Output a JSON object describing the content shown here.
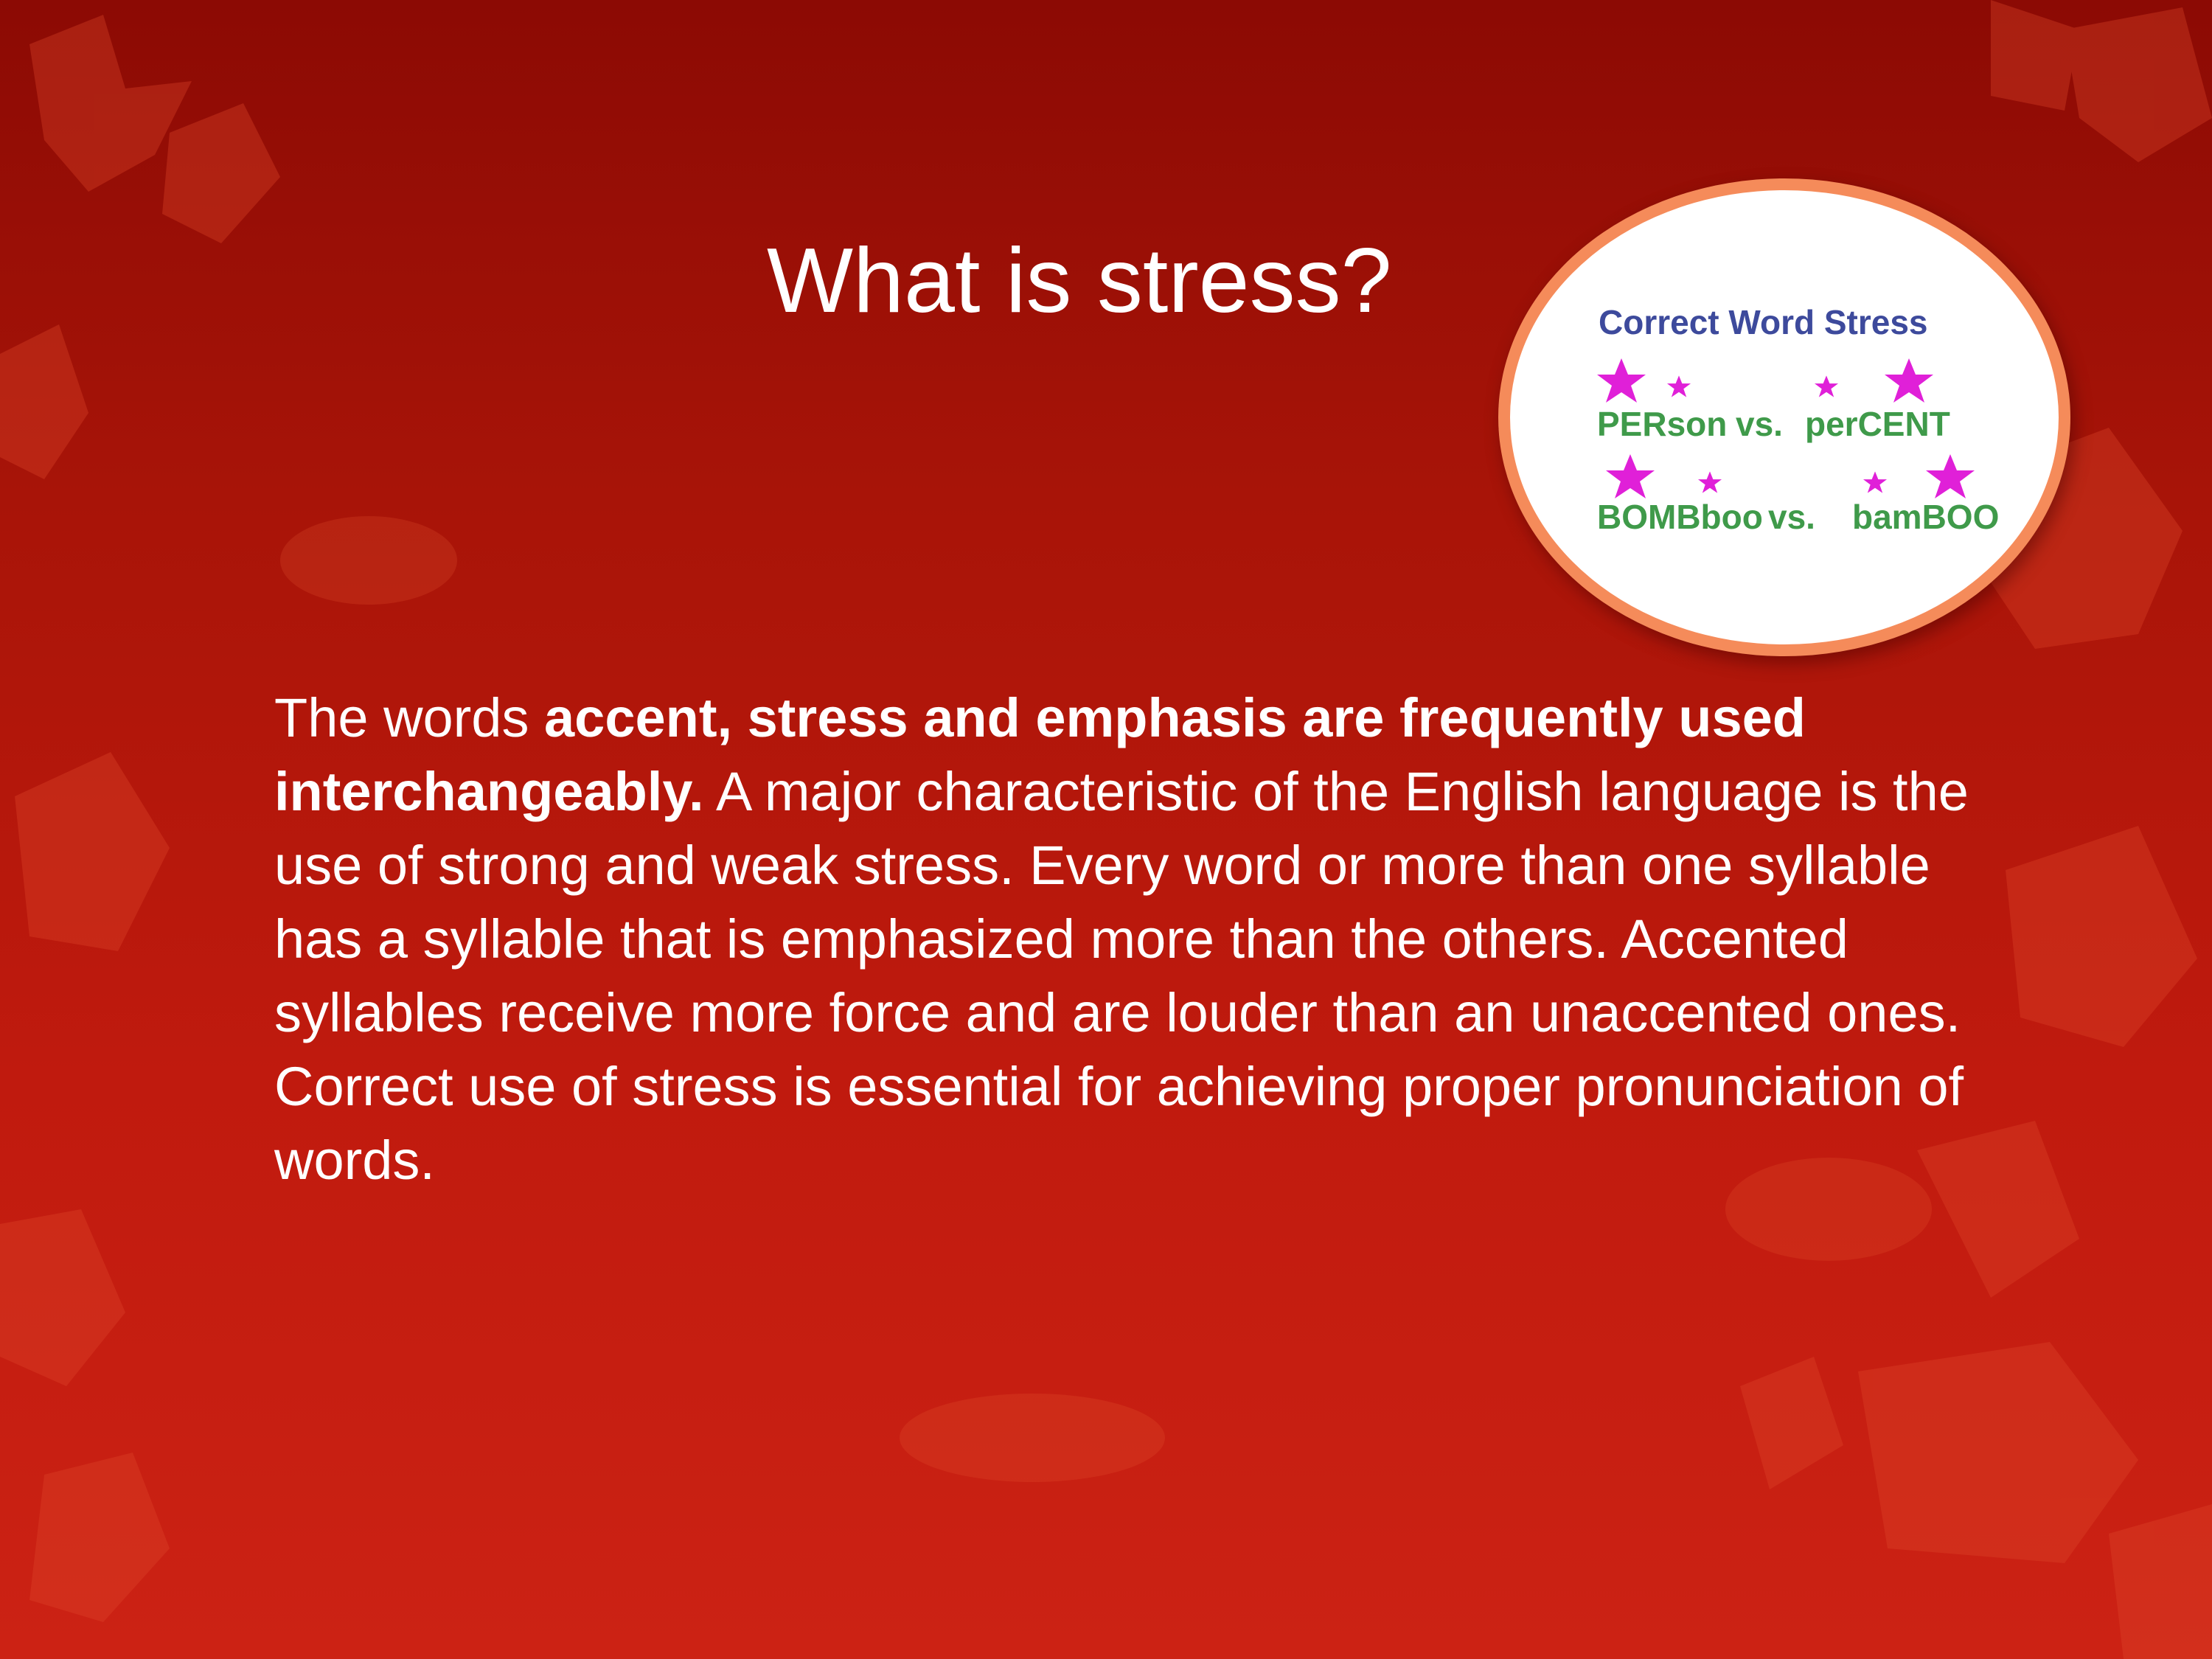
{
  "slide": {
    "title": "What is stress?",
    "paragraph": {
      "intro": "The words ",
      "bold": "accent, stress and emphasis are frequently used interchangeably.",
      "rest": " A major characteristic of the English language is the use of strong and weak stress.  Every word or more than one syllable  has a syllable that is emphasized more than the others.  Accented syllables receive more force and are louder than an unaccented ones.  Correct use of stress is essential for achieving proper pronunciation of words."
    }
  },
  "image": {
    "heading": "Correct Word Stress",
    "rows": [
      {
        "left": "PERson",
        "vs": "vs.",
        "right": "perCENT"
      },
      {
        "left": "BOMBboo",
        "vs": "vs.",
        "right": "bamBOO"
      }
    ],
    "colors": {
      "heading": "#3d4a9c",
      "words": "#3f9a4a",
      "marks": "#e020d8",
      "ring": "#f58b5a"
    }
  }
}
